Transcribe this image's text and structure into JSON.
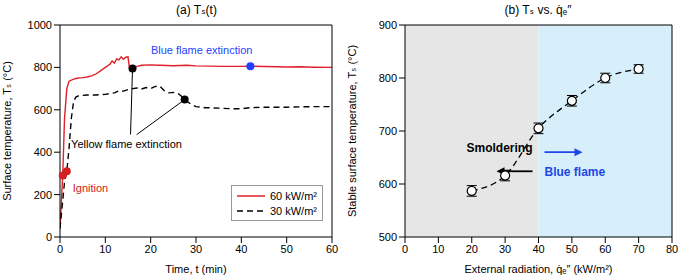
{
  "chart_data": [
    {
      "type": "line",
      "title": "(a) Tₛ(t)",
      "x_label": "Time, t (min)",
      "y_label": "Surface temperature, Tₛ (°C)",
      "xlim": [
        0,
        60
      ],
      "xticks": [
        0,
        10,
        20,
        30,
        40,
        50,
        60
      ],
      "ylim": [
        0,
        1000
      ],
      "yticks": [
        0,
        200,
        400,
        600,
        800,
        1000
      ],
      "grid": false,
      "legend": "lower right",
      "series": [
        {
          "name": "60 kW/m²",
          "color": "#e0202a",
          "line_style": "solid",
          "x": [
            0,
            0.6,
            1,
            1.5,
            2,
            3,
            4,
            5,
            6,
            7,
            8,
            9,
            10,
            11,
            11.5,
            12,
            12.5,
            13,
            13.5,
            14,
            14.5,
            15,
            15.3,
            16,
            17,
            18,
            20,
            22,
            25,
            28,
            30,
            33,
            36,
            40,
            42,
            45,
            48,
            50,
            53,
            56,
            60
          ],
          "values": [
            40,
            290,
            560,
            700,
            735,
            745,
            750,
            752,
            755,
            760,
            770,
            785,
            800,
            815,
            830,
            820,
            840,
            835,
            850,
            838,
            848,
            850,
            800,
            795,
            805,
            810,
            812,
            810,
            808,
            810,
            807,
            806,
            805,
            805,
            806,
            804,
            803,
            802,
            803,
            801,
            800
          ]
        },
        {
          "name": "30 kW/m²",
          "color": "#000000",
          "line_style": "dashed",
          "x": [
            0,
            0.5,
            1,
            1.5,
            2,
            2.5,
            3,
            3.5,
            4,
            5,
            6,
            8,
            10,
            12,
            13,
            14,
            15,
            16,
            17,
            18,
            19,
            20,
            21,
            22,
            23,
            24,
            25,
            26,
            27,
            27.5,
            28,
            29,
            30,
            32,
            35,
            38,
            40,
            42,
            45,
            48,
            50,
            53,
            56,
            60
          ],
          "values": [
            40,
            150,
            260,
            310,
            420,
            560,
            640,
            660,
            665,
            668,
            670,
            670,
            673,
            680,
            690,
            688,
            695,
            700,
            703,
            698,
            705,
            700,
            710,
            712,
            690,
            680,
            682,
            678,
            660,
            648,
            640,
            625,
            615,
            610,
            608,
            605,
            605,
            610,
            612,
            612,
            612,
            614,
            615,
            615
          ]
        }
      ],
      "annotations": [
        {
          "text": "Ignition",
          "color": "#d42020",
          "points": [
            {
              "x": 0.6,
              "y": 290
            },
            {
              "x": 1.5,
              "y": 310
            }
          ]
        },
        {
          "text": "Yellow flame extinction",
          "color": "#000000",
          "points": [
            {
              "x": 16,
              "y": 795
            },
            {
              "x": 27.5,
              "y": 648
            }
          ]
        },
        {
          "text": "Blue flame extinction",
          "color": "#1f3fff",
          "points": [
            {
              "x": 42,
              "y": 806
            }
          ]
        }
      ]
    },
    {
      "type": "line",
      "title": "(b) Tₛ vs. q̇ₑ″",
      "x_label": "External radiation, q̇ₑ″ (kW/m²)",
      "y_label": "Stable surface temperature, Tₛ (°C)",
      "xlim": [
        0,
        80
      ],
      "xticks": [
        0,
        10,
        20,
        30,
        40,
        50,
        60,
        70,
        80
      ],
      "ylim": [
        500,
        900
      ],
      "yticks": [
        500,
        600,
        700,
        800,
        900
      ],
      "grid": false,
      "color": "#000000",
      "line_style": "dashed",
      "marker": "circle",
      "x": [
        20,
        30,
        40,
        50,
        60,
        70
      ],
      "values": [
        587,
        616,
        705,
        757,
        800,
        817
      ],
      "errors": [
        10,
        10,
        10,
        10,
        9,
        8
      ],
      "regions": [
        {
          "label": "Smoldering",
          "from": 0,
          "to": 40,
          "color": "#e6e6e6",
          "label_color": "#000000"
        },
        {
          "label": "Blue flame",
          "from": 40,
          "to": 80,
          "color": "#d6effa",
          "label_color": "#1e46e6"
        }
      ]
    }
  ]
}
